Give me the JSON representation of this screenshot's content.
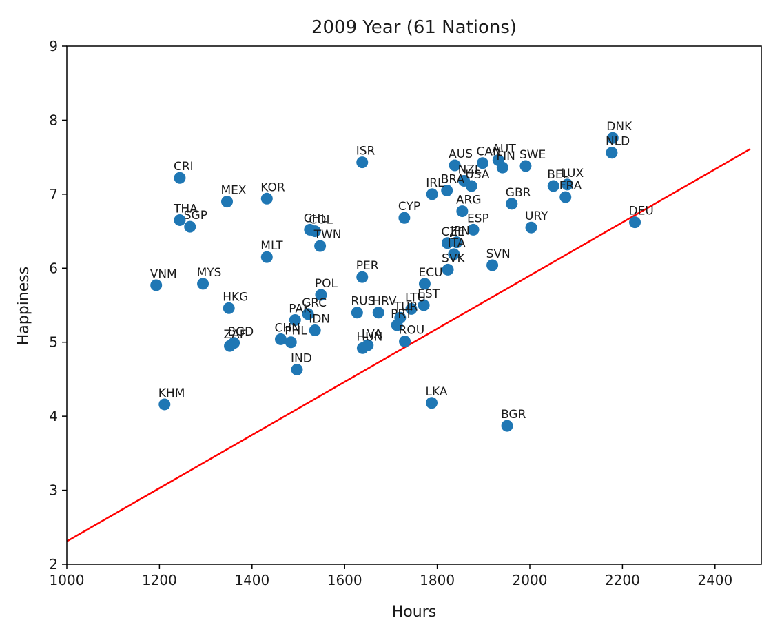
{
  "chart_data": {
    "type": "scatter",
    "title": "2009 Year (61 Nations)",
    "xlabel": "Hours",
    "ylabel": "Happiness",
    "xlim": [
      1000,
      2500
    ],
    "ylim": [
      2,
      9
    ],
    "xticks": [
      1000,
      1200,
      1400,
      1600,
      1800,
      2000,
      2200,
      2400
    ],
    "yticks": [
      2,
      3,
      4,
      5,
      6,
      7,
      8,
      9
    ],
    "point_color": "#1f77b4",
    "line_color": "#ff0000",
    "fit_line": {
      "x": [
        1000,
        2476
      ],
      "y": [
        2.31,
        7.61
      ]
    },
    "points": [
      {
        "label": "DNK",
        "x": 2179,
        "y": 7.76
      },
      {
        "label": "NLD",
        "x": 2177,
        "y": 7.56
      },
      {
        "label": "DEU",
        "x": 2227,
        "y": 6.62
      },
      {
        "label": "ISR",
        "x": 1638,
        "y": 7.43
      },
      {
        "label": "AUS",
        "x": 1838,
        "y": 7.39
      },
      {
        "label": "CAN",
        "x": 1898,
        "y": 7.42
      },
      {
        "label": "AUT",
        "x": 1932,
        "y": 7.46
      },
      {
        "label": "FIN",
        "x": 1941,
        "y": 7.36
      },
      {
        "label": "SWE",
        "x": 1991,
        "y": 7.38
      },
      {
        "label": "NZL",
        "x": 1858,
        "y": 7.18
      },
      {
        "label": "USA",
        "x": 1874,
        "y": 7.11
      },
      {
        "label": "IRL",
        "x": 1789,
        "y": 7.0
      },
      {
        "label": "BRA",
        "x": 1821,
        "y": 7.05
      },
      {
        "label": "BEL",
        "x": 2051,
        "y": 7.11
      },
      {
        "label": "LUX",
        "x": 2081,
        "y": 7.13
      },
      {
        "label": "FRA",
        "x": 2077,
        "y": 6.96
      },
      {
        "label": "GBR",
        "x": 1961,
        "y": 6.87
      },
      {
        "label": "ARG",
        "x": 1854,
        "y": 6.77
      },
      {
        "label": "ESP",
        "x": 1878,
        "y": 6.52
      },
      {
        "label": "URY",
        "x": 2003,
        "y": 6.55
      },
      {
        "label": "CYP",
        "x": 1729,
        "y": 6.68
      },
      {
        "label": "CZE",
        "x": 1822,
        "y": 6.34
      },
      {
        "label": "JPN",
        "x": 1842,
        "y": 6.35
      },
      {
        "label": "ITA",
        "x": 1836,
        "y": 6.19
      },
      {
        "label": "SVK",
        "x": 1823,
        "y": 5.98
      },
      {
        "label": "SVN",
        "x": 1919,
        "y": 6.04
      },
      {
        "label": "CRI",
        "x": 1244,
        "y": 7.22
      },
      {
        "label": "MEX",
        "x": 1346,
        "y": 6.9
      },
      {
        "label": "KOR",
        "x": 1432,
        "y": 6.94
      },
      {
        "label": "THA",
        "x": 1244,
        "y": 6.65
      },
      {
        "label": "SGP",
        "x": 1266,
        "y": 6.56
      },
      {
        "label": "CHL",
        "x": 1525,
        "y": 6.52
      },
      {
        "label": "COL",
        "x": 1536,
        "y": 6.5
      },
      {
        "label": "TWN",
        "x": 1547,
        "y": 6.3
      },
      {
        "label": "MLT",
        "x": 1432,
        "y": 6.15
      },
      {
        "label": "PER",
        "x": 1638,
        "y": 5.88
      },
      {
        "label": "ECU",
        "x": 1773,
        "y": 5.79
      },
      {
        "label": "VNM",
        "x": 1193,
        "y": 5.77
      },
      {
        "label": "MYS",
        "x": 1294,
        "y": 5.79
      },
      {
        "label": "POL",
        "x": 1549,
        "y": 5.64
      },
      {
        "label": "HKG",
        "x": 1350,
        "y": 5.46
      },
      {
        "label": "GRC",
        "x": 1521,
        "y": 5.38
      },
      {
        "label": "PAK",
        "x": 1493,
        "y": 5.3
      },
      {
        "label": "IDN",
        "x": 1536,
        "y": 5.16
      },
      {
        "label": "RUS",
        "x": 1627,
        "y": 5.4
      },
      {
        "label": "HRV",
        "x": 1673,
        "y": 5.4
      },
      {
        "label": "LTU",
        "x": 1744,
        "y": 5.45
      },
      {
        "label": "EST",
        "x": 1771,
        "y": 5.5
      },
      {
        "label": "TUR",
        "x": 1720,
        "y": 5.33
      },
      {
        "label": "PRT",
        "x": 1713,
        "y": 5.23
      },
      {
        "label": "ROU",
        "x": 1730,
        "y": 5.01
      },
      {
        "label": "CHN",
        "x": 1462,
        "y": 5.04
      },
      {
        "label": "PHL",
        "x": 1484,
        "y": 5.0
      },
      {
        "label": "BGD",
        "x": 1361,
        "y": 4.99
      },
      {
        "label": "ZAF",
        "x": 1352,
        "y": 4.95
      },
      {
        "label": "HUN",
        "x": 1639,
        "y": 4.92
      },
      {
        "label": "LVA",
        "x": 1650,
        "y": 4.96
      },
      {
        "label": "IND",
        "x": 1497,
        "y": 4.63
      },
      {
        "label": "KHM",
        "x": 1211,
        "y": 4.16
      },
      {
        "label": "LKA",
        "x": 1788,
        "y": 4.18
      },
      {
        "label": "BGR",
        "x": 1951,
        "y": 3.87
      }
    ]
  }
}
